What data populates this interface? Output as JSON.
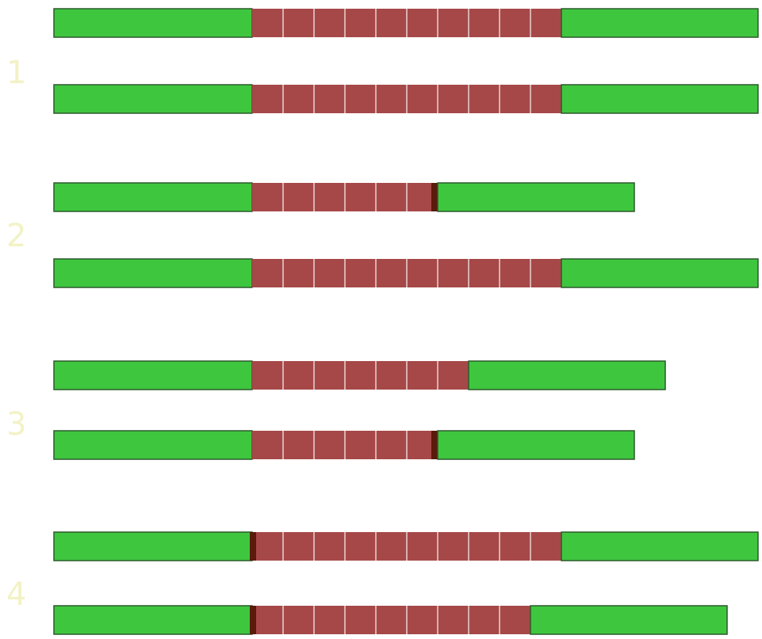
{
  "colors": {
    "background": "#ffffff",
    "flank": "#3fc63f",
    "flank_border": "#2a5a2a",
    "repeat": "#a64848",
    "repeat_divider": "#e8d2d2",
    "dark_marker": "#5a1a0c",
    "label": "#f2f2c6"
  },
  "labels": {
    "group1": "1",
    "group2": "2",
    "group3": "3",
    "group4": "4"
  },
  "groups": [
    {
      "label_key": "group1",
      "strands": [
        {
          "repeat_units": 10,
          "dark_start": false,
          "dark_end": false
        },
        {
          "repeat_units": 10,
          "dark_start": false,
          "dark_end": false
        }
      ]
    },
    {
      "label_key": "group2",
      "strands": [
        {
          "repeat_units": 6,
          "dark_start": false,
          "dark_end": true
        },
        {
          "repeat_units": 10,
          "dark_start": false,
          "dark_end": false
        }
      ]
    },
    {
      "label_key": "group3",
      "strands": [
        {
          "repeat_units": 7,
          "dark_start": false,
          "dark_end": false
        },
        {
          "repeat_units": 6,
          "dark_start": false,
          "dark_end": true
        }
      ]
    },
    {
      "label_key": "group4",
      "strands": [
        {
          "repeat_units": 10,
          "dark_start": true,
          "dark_end": false
        },
        {
          "repeat_units": 9,
          "dark_start": true,
          "dark_end": false
        }
      ]
    }
  ]
}
